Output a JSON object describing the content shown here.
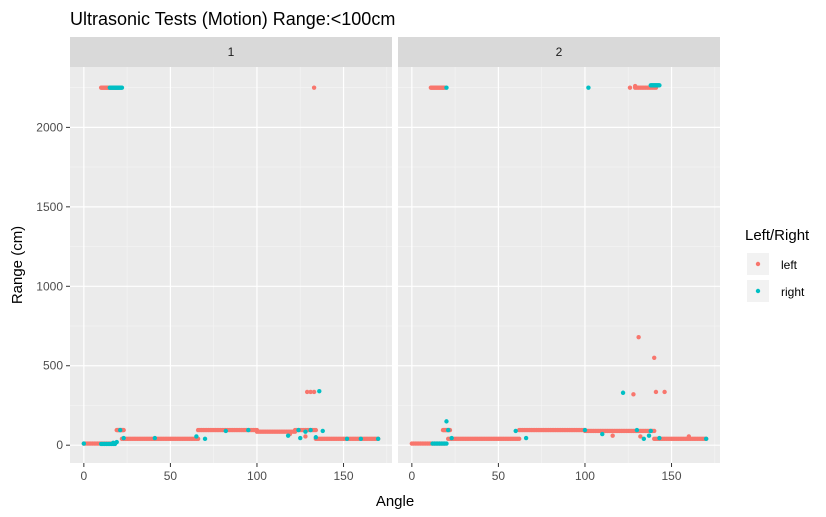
{
  "chart_data": {
    "type": "scatter",
    "title": "Ultrasonic Tests (Motion) Range:<100cm",
    "xlabel": "Angle",
    "ylabel": "Range (cm)",
    "xlim": [
      -8,
      178
    ],
    "ylim": [
      -112,
      2380
    ],
    "x_ticks": [
      0,
      50,
      100,
      150
    ],
    "y_ticks": [
      0,
      500,
      1000,
      1500,
      2000
    ],
    "grid": true,
    "legend": {
      "title": "Left/Right",
      "position": "right",
      "entries": [
        {
          "label": "left",
          "color": "#F8766D"
        },
        {
          "label": "right",
          "color": "#00BFC4"
        }
      ]
    },
    "facets": [
      {
        "label": "1",
        "series": [
          {
            "name": "left",
            "color": "#F8766D",
            "segments": [
              {
                "x_from": 0,
                "x_to": 18,
                "step": 1,
                "y": 10
              },
              {
                "x_from": 10,
                "x_to": 20,
                "step": 0.5,
                "y": 2250
              },
              {
                "x_from": 19,
                "x_to": 23,
                "step": 0.5,
                "y": 95
              },
              {
                "x_from": 22,
                "x_to": 66,
                "step": 1,
                "y": 40
              },
              {
                "x_from": 66,
                "x_to": 100,
                "step": 1,
                "y": 95
              },
              {
                "x_from": 100,
                "x_to": 122,
                "step": 1,
                "y": 85
              },
              {
                "x_from": 122,
                "x_to": 134,
                "step": 1,
                "y": 95
              },
              {
                "x_from": 134,
                "x_to": 170,
                "step": 1,
                "y": 40
              }
            ],
            "points": [
              [
                133,
                2250
              ],
              [
                129,
                335
              ],
              [
                131,
                335
              ],
              [
                133,
                335
              ],
              [
                119,
                70
              ],
              [
                128,
                55
              ]
            ]
          },
          {
            "name": "right",
            "color": "#00BFC4",
            "segments": [
              {
                "x_from": 15,
                "x_to": 22,
                "step": 0.5,
                "y": 2250
              },
              {
                "x_from": 10,
                "x_to": 18,
                "step": 1,
                "y": 8
              }
            ],
            "points": [
              [
                0,
                10
              ],
              [
                17,
                15
              ],
              [
                19,
                20
              ],
              [
                21,
                95
              ],
              [
                23,
                45
              ],
              [
                41,
                45
              ],
              [
                65,
                55
              ],
              [
                70,
                40
              ],
              [
                82,
                90
              ],
              [
                95,
                95
              ],
              [
                118,
                60
              ],
              [
                124,
                95
              ],
              [
                125,
                45
              ],
              [
                128,
                85
              ],
              [
                131,
                95
              ],
              [
                134,
                50
              ],
              [
                136,
                340
              ],
              [
                138,
                90
              ],
              [
                152,
                40
              ],
              [
                160,
                40
              ],
              [
                170,
                40
              ]
            ]
          }
        ]
      },
      {
        "label": "2",
        "series": [
          {
            "name": "left",
            "color": "#F8766D",
            "segments": [
              {
                "x_from": 0,
                "x_to": 19,
                "step": 1,
                "y": 10
              },
              {
                "x_from": 11,
                "x_to": 19,
                "step": 0.5,
                "y": 2250
              },
              {
                "x_from": 18,
                "x_to": 22,
                "step": 0.5,
                "y": 95
              },
              {
                "x_from": 21,
                "x_to": 62,
                "step": 1,
                "y": 40
              },
              {
                "x_from": 62,
                "x_to": 100,
                "step": 1,
                "y": 95
              },
              {
                "x_from": 100,
                "x_to": 140,
                "step": 1,
                "y": 90
              },
              {
                "x_from": 140,
                "x_to": 170,
                "step": 1,
                "y": 40
              },
              {
                "x_from": 129,
                "x_to": 141,
                "step": 1,
                "y": 2250
              }
            ],
            "points": [
              [
                126,
                2250
              ],
              [
                129,
                2260
              ],
              [
                131,
                680
              ],
              [
                128,
                320
              ],
              [
                140,
                550
              ],
              [
                141,
                335
              ],
              [
                146,
                335
              ],
              [
                116,
                60
              ],
              [
                132,
                55
              ],
              [
                160,
                55
              ]
            ]
          },
          {
            "name": "right",
            "color": "#00BFC4",
            "segments": [
              {
                "x_from": 12,
                "x_to": 20,
                "step": 1,
                "y": 10
              },
              {
                "x_from": 138,
                "x_to": 143,
                "step": 0.5,
                "y": 2265
              }
            ],
            "points": [
              [
                20,
                2250
              ],
              [
                102,
                2250
              ],
              [
                20,
                150
              ],
              [
                21,
                95
              ],
              [
                23,
                45
              ],
              [
                60,
                90
              ],
              [
                66,
                45
              ],
              [
                100,
                95
              ],
              [
                110,
                70
              ],
              [
                122,
                330
              ],
              [
                130,
                95
              ],
              [
                134,
                40
              ],
              [
                137,
                60
              ],
              [
                138,
                90
              ],
              [
                143,
                45
              ],
              [
                170,
                40
              ]
            ]
          }
        ]
      }
    ]
  }
}
